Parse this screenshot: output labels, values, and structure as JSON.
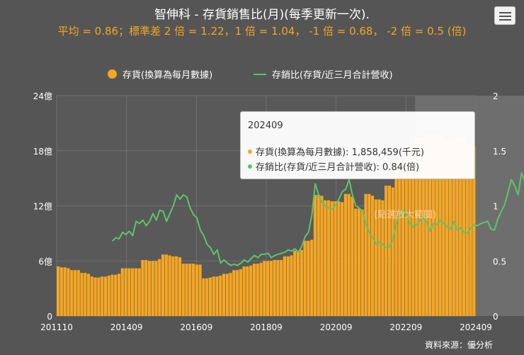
{
  "title": "智伸科 - 存貨銷售比(月)(每季更新一次).",
  "subtitle": "平均 = 0.86；標準差 2 倍 = 1.22，1 倍 = 1.04， -1 倍 = 0.68， -2 倍 = 0.5 (倍)",
  "menu": {
    "icon": "hamburger-menu-icon"
  },
  "legend": {
    "inventory": "存貨(換算為每月數據)",
    "ratio": "存銷比(存貨/近三月合計營收)"
  },
  "watermark": "(點選放大範圍)",
  "source": "資料來源：優分析",
  "tooltip": {
    "title": "202409",
    "inventory_text": "存貨(換算為每月數據): 1,858,459(千元)",
    "ratio_text": "存銷比(存貨/近三月合計營收): 0.84(倍)"
  },
  "colors": {
    "background": "#555555",
    "bars": "#f5a623",
    "line": "#5cc46a",
    "subtitle": "#f5a623",
    "text": "#ffffff"
  },
  "chart_data": {
    "type": "bar+line",
    "x_tick_labels": [
      "201110",
      "201409",
      "201609",
      "201809",
      "202009",
      "202209",
      "202409"
    ],
    "y_left": {
      "ticks": [
        "0",
        "6億",
        "12億",
        "18億",
        "24億"
      ],
      "ylim": [
        0,
        24
      ],
      "unit": "億"
    },
    "y_right": {
      "ticks": [
        "0",
        "0.5",
        "1",
        "1.5",
        "2"
      ],
      "ylim": [
        0,
        2
      ]
    },
    "grid": true,
    "highlight_band": {
      "from_index": 106,
      "to_index": 155
    },
    "series": [
      {
        "name": "存貨(換算為每月數據)",
        "type": "bar",
        "values": [
          5.4,
          5.3,
          5.3,
          5.2,
          5.0,
          5.0,
          5.0,
          4.7,
          4.7,
          4.6,
          4.3,
          4.2,
          4.2,
          4.3,
          4.3,
          4.4,
          4.5,
          4.5,
          4.6,
          5.2,
          5.2,
          5.2,
          5.2,
          5.2,
          5.2,
          6.1,
          6.1,
          6.0,
          6.0,
          6.0,
          6.2,
          6.7,
          6.7,
          6.6,
          6.5,
          6.5,
          6.4,
          5.7,
          5.7,
          5.7,
          5.7,
          5.6,
          5.6,
          4.1,
          4.1,
          4.2,
          4.3,
          4.3,
          4.4,
          4.6,
          4.6,
          4.7,
          5.0,
          5.0,
          5.1,
          5.4,
          5.4,
          5.5,
          5.7,
          5.7,
          5.8,
          6.0,
          6.0,
          6.0,
          6.1,
          6.1,
          6.1,
          6.5,
          6.5,
          6.6,
          7.1,
          7.1,
          7.2,
          8.2,
          8.2,
          8.3,
          13.2,
          13.2,
          13.1,
          12.6,
          12.6,
          12.5,
          12.5,
          12.5,
          12.4,
          13.3,
          13.3,
          13.0,
          11.7,
          11.7,
          11.6,
          13.3,
          13.3,
          13.1,
          12.7,
          12.7,
          12.6,
          14.2,
          14.2,
          14.0,
          16.7,
          16.7,
          16.9,
          18.6,
          18.6,
          18.5,
          19.5,
          19.5,
          19.4,
          19.9,
          19.9,
          19.8,
          19.7,
          19.7,
          19.5,
          19.2,
          19.2,
          19.1,
          19.5,
          19.5,
          19.3,
          18.7,
          18.7,
          18.5
        ],
        "value_unit": "億"
      },
      {
        "name": "存銷比(存貨/近三月合計營收)",
        "type": "line",
        "x_offset": 16,
        "values": [
          0.68,
          0.71,
          0.7,
          0.76,
          0.74,
          0.77,
          0.73,
          0.86,
          0.84,
          0.87,
          0.82,
          0.86,
          0.93,
          0.87,
          0.96,
          0.95,
          0.86,
          0.93,
          1.0,
          1.1,
          1.06,
          1.1,
          1.08,
          0.98,
          0.92,
          0.89,
          0.78,
          0.73,
          0.65,
          0.62,
          0.56,
          0.6,
          0.48,
          0.51,
          0.48,
          0.46,
          0.47,
          0.46,
          0.48,
          0.51,
          0.49,
          0.52,
          0.55,
          0.53,
          0.56,
          0.56,
          0.57,
          0.53,
          0.55,
          0.56,
          0.57,
          0.58,
          0.6,
          0.59,
          0.61,
          0.58,
          0.63,
          0.72,
          0.76,
          0.92,
          1.2,
          1.1,
          1.03,
          1.0,
          0.98,
          0.97,
          1.01,
          1.06,
          1.13,
          1.15,
          1.24,
          1.1,
          1.0,
          0.98,
          0.95,
          0.83,
          0.76,
          0.71,
          0.65,
          0.67,
          0.65,
          0.62,
          0.63,
          0.7,
          0.84,
          0.92,
          0.96,
          0.91,
          0.84,
          0.81,
          0.83,
          0.87,
          0.89,
          0.85,
          0.77,
          0.84,
          0.83,
          0.87,
          0.84,
          0.81,
          0.79,
          0.86,
          0.78,
          0.8,
          0.76,
          0.75,
          0.8,
          0.83,
          0.82,
          0.84,
          0.85,
          0.86,
          0.79,
          0.78,
          0.88,
          0.95,
          1.01,
          1.12,
          1.24,
          1.18,
          1.1,
          1.3,
          1.22,
          1.19,
          1.02,
          0.94,
          0.88,
          0.84
        ]
      }
    ]
  }
}
